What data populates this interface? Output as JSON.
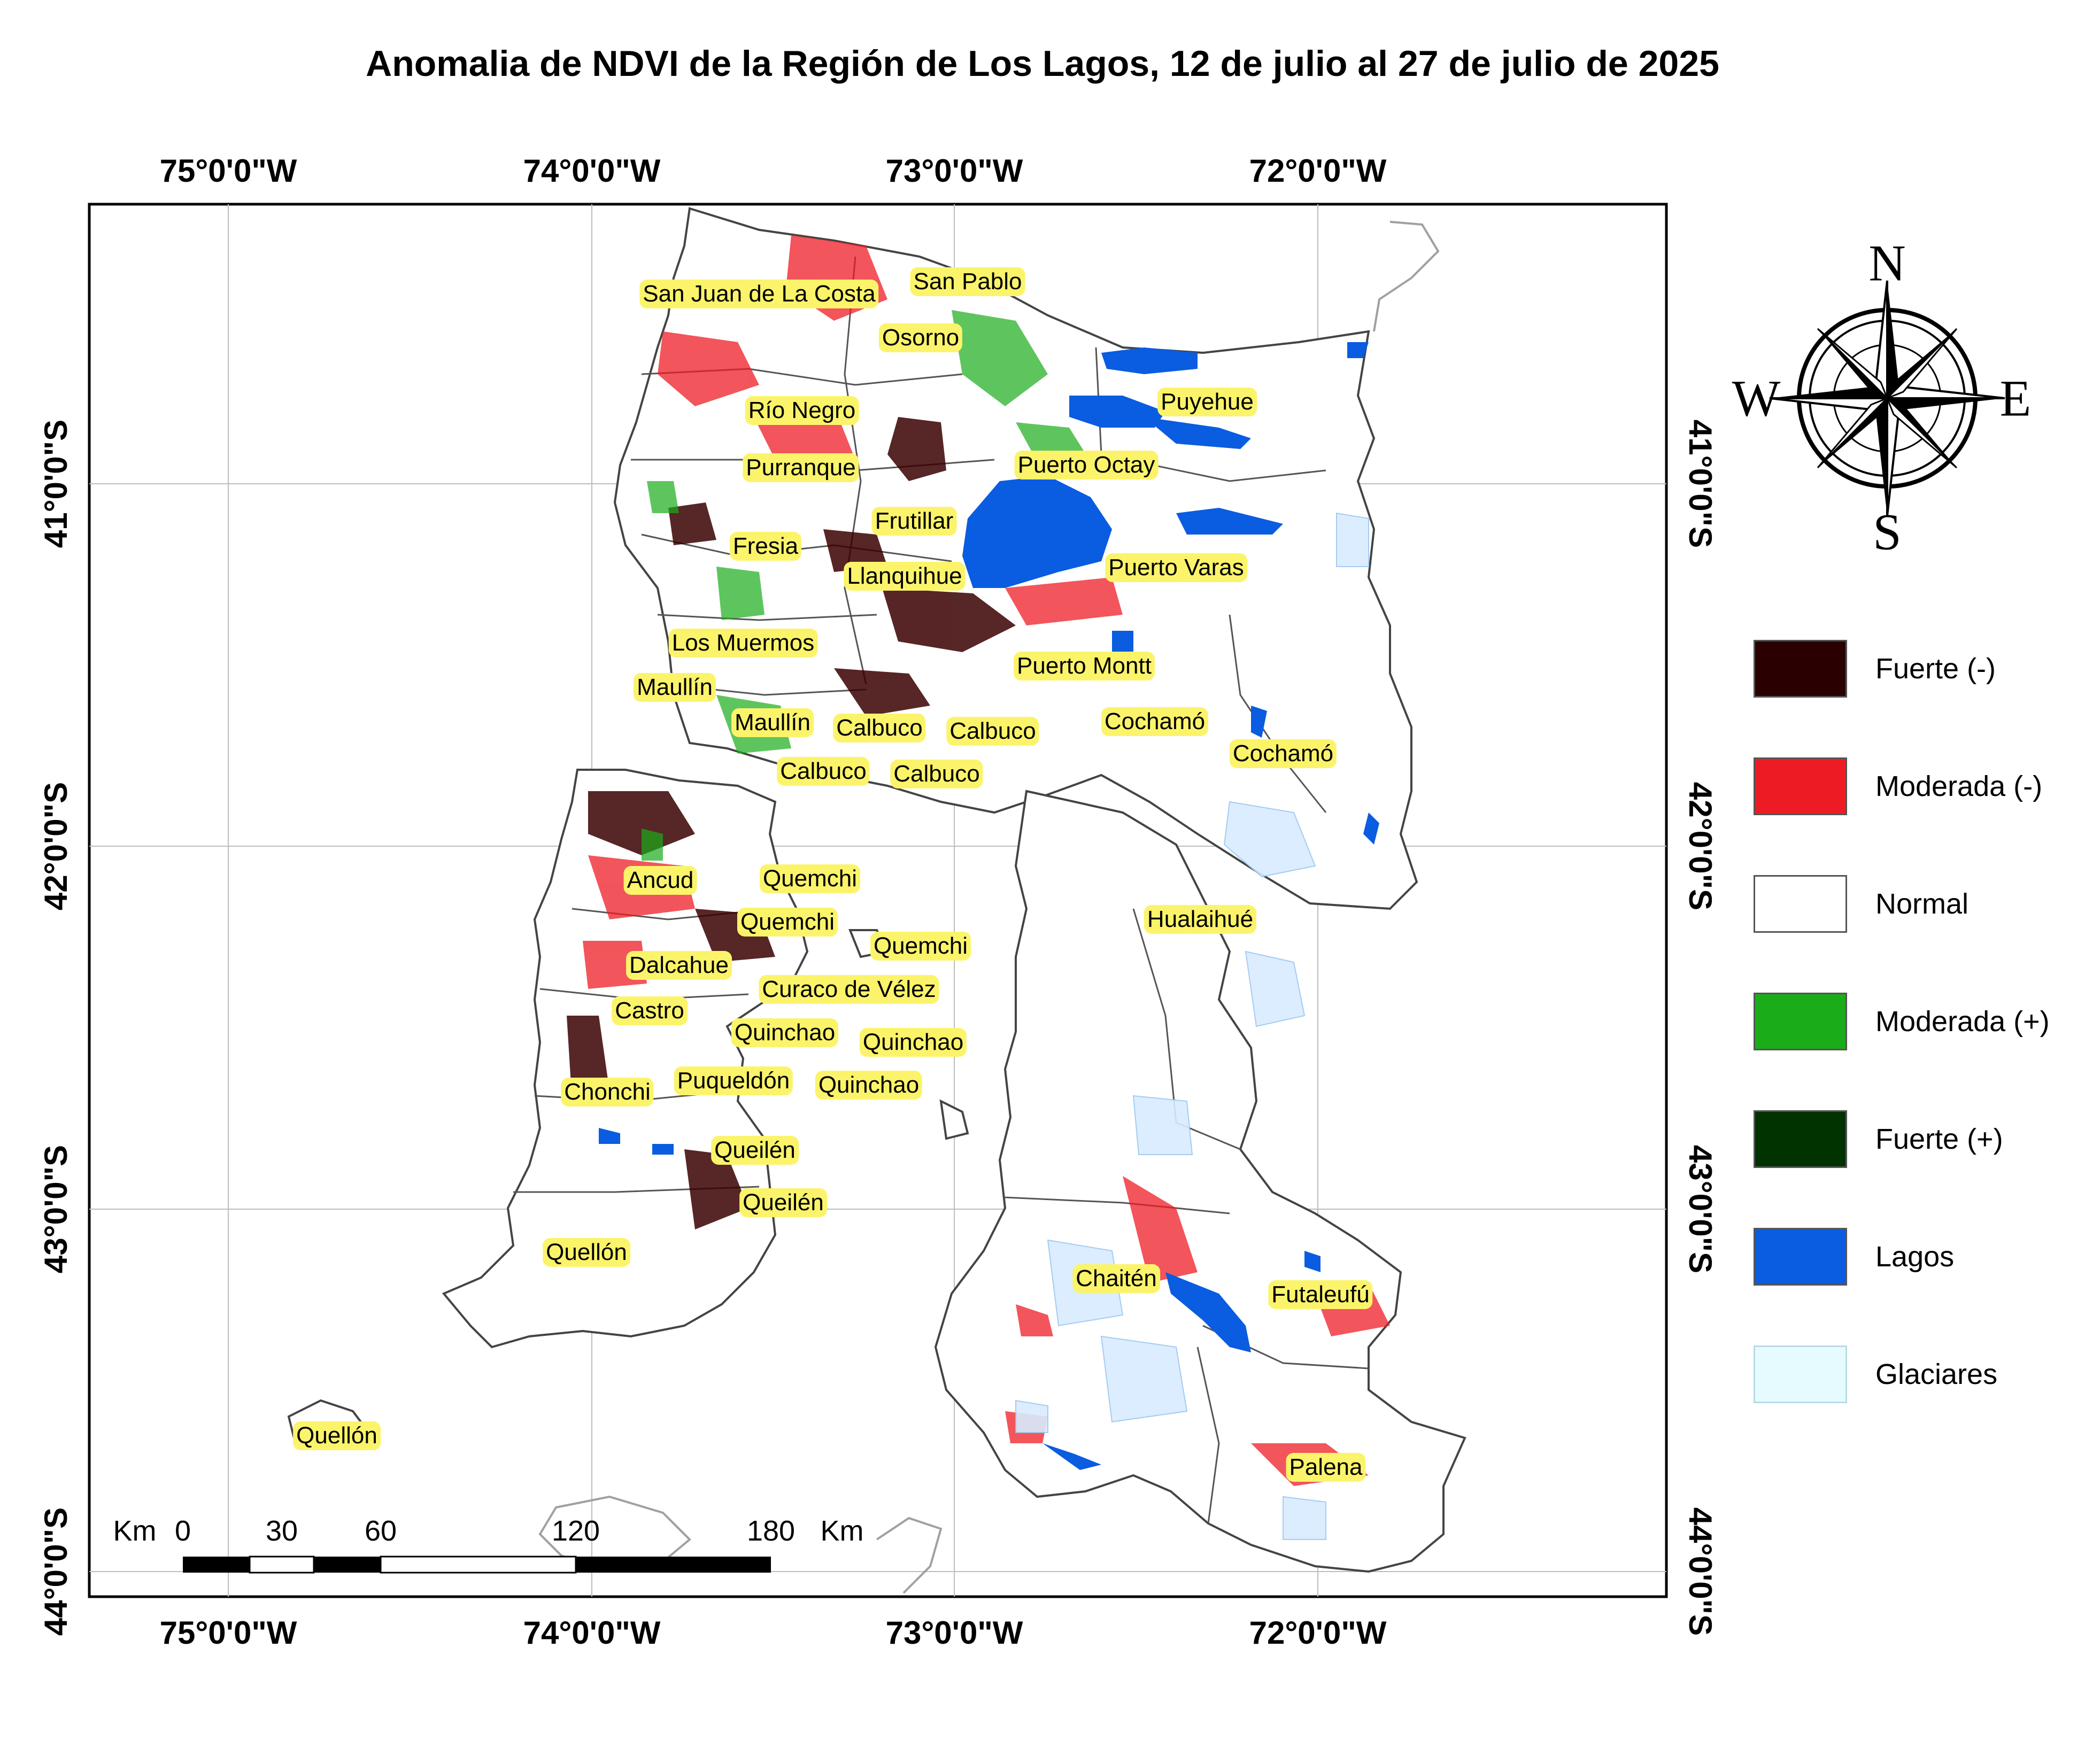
{
  "title": "Anomalia de NDVI de la Región de Los Lagos, 12 de julio al 27 de julio de 2025",
  "axes": {
    "longitude_ticks": [
      "75°0'0\"W",
      "74°0'0\"W",
      "73°0'0\"W",
      "72°0'0\"W"
    ],
    "latitude_ticks": [
      "41°0'0\"S",
      "42°0'0\"S",
      "43°0'0\"S",
      "44°0'0\"S"
    ]
  },
  "places": [
    "San Juan de La Costa",
    "San Pablo",
    "Osorno",
    "Río Negro",
    "Puyehue",
    "Purranque",
    "Puerto Octay",
    "Frutillar",
    "Fresia",
    "Llanquihue",
    "Puerto Varas",
    "Los Muermos",
    "Puerto Montt",
    "Maullín",
    "Maullín",
    "Calbuco",
    "Calbuco",
    "Calbuco",
    "Calbuco",
    "Cochamó",
    "Cochamó",
    "Ancud",
    "Quemchi",
    "Quemchi",
    "Quemchi",
    "Hualaihué",
    "Dalcahue",
    "Curaco de Vélez",
    "Castro",
    "Quinchao",
    "Quinchao",
    "Quinchao",
    "Puqueldón",
    "Chonchi",
    "Queilén",
    "Queilén",
    "Quellón",
    "Quellón",
    "Chaitén",
    "Futaleufú",
    "Palena"
  ],
  "legend": [
    {
      "label": "Fuerte (-)",
      "color": "#2b0000"
    },
    {
      "label": "Moderada (-)",
      "color": "#ed1c24"
    },
    {
      "label": "Normal",
      "color": "#ffffff"
    },
    {
      "label": "Moderada (+)",
      "color": "#1aad19"
    },
    {
      "label": "Fuerte (+)",
      "color": "#003300"
    },
    {
      "label": "Lagos",
      "color": "#0a5ce0"
    },
    {
      "label": "Glaciares",
      "color": "#e6fbff"
    }
  ],
  "compass": {
    "n": "N",
    "s": "S",
    "e": "E",
    "w": "W"
  },
  "scale_bar": {
    "unit_left": "Km",
    "unit_right": "Km",
    "ticks": [
      "0",
      "30",
      "60",
      "120",
      "180"
    ]
  }
}
